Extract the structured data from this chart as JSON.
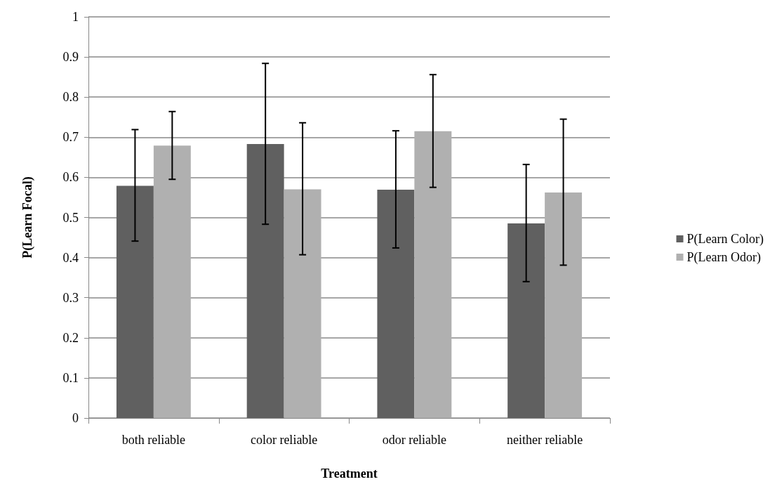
{
  "chart_data": {
    "type": "bar",
    "xlabel": "Treatment",
    "ylabel": "P(Learn Focal)",
    "categories": [
      "both reliable",
      "color reliable",
      "odor reliable",
      "neither reliable"
    ],
    "series": [
      {
        "name": "P(Learn Color)",
        "color": "#606060",
        "values": [
          0.579,
          0.683,
          0.569,
          0.485
        ],
        "errors": [
          [
            0.441,
            0.719
          ],
          [
            0.483,
            0.884
          ],
          [
            0.424,
            0.716
          ],
          [
            0.34,
            0.632
          ]
        ]
      },
      {
        "name": "P(Learn Odor)",
        "color": "#b0b0b0",
        "values": [
          0.679,
          0.57,
          0.715,
          0.562
        ],
        "errors": [
          [
            0.595,
            0.764
          ],
          [
            0.407,
            0.736
          ],
          [
            0.575,
            0.856
          ],
          [
            0.381,
            0.745
          ]
        ]
      }
    ],
    "ylim": [
      0,
      1
    ],
    "yticks": [
      0,
      0.1,
      0.2,
      0.3,
      0.4,
      0.5,
      0.6,
      0.7,
      0.8,
      0.9,
      1
    ],
    "grid": "y",
    "legend": "right"
  }
}
